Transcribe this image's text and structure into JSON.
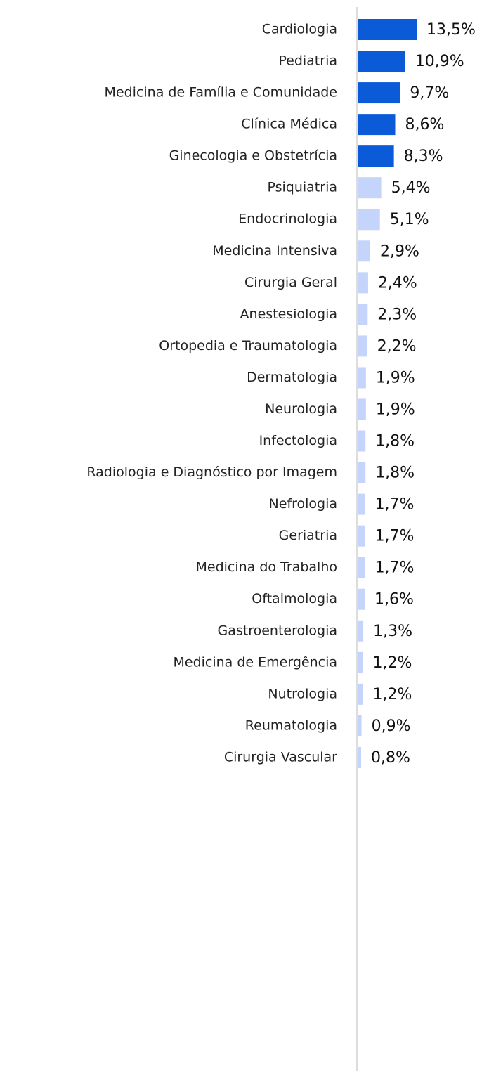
{
  "chart_data": {
    "type": "barh",
    "categories": [
      "Cardiologia",
      "Pediatria",
      "Medicina de Família e Comunidade",
      "Clínica Médica",
      "Ginecologia e Obstetrícia",
      "Psiquiatria",
      "Endocrinologia",
      "Medicina Intensiva",
      "Cirurgia Geral",
      "Anestesiologia",
      "Ortopedia e Traumatologia",
      "Dermatologia",
      "Neurologia",
      "Infectologia",
      "Radiologia e Diagnóstico por Imagem",
      "Nefrologia",
      "Geriatria",
      "Medicina do Trabalho",
      "Oftalmologia",
      "Gastroenterologia",
      "Medicina de Emergência",
      "Nutrologia",
      "Reumatologia",
      "Cirurgia Vascular"
    ],
    "values": [
      13.5,
      10.9,
      9.7,
      8.6,
      8.3,
      5.4,
      5.1,
      2.9,
      2.4,
      2.3,
      2.2,
      1.9,
      1.9,
      1.8,
      1.8,
      1.7,
      1.7,
      1.7,
      1.6,
      1.3,
      1.2,
      1.2,
      0.9,
      0.8
    ],
    "value_labels": [
      "13,5%",
      "10,9%",
      "9,7%",
      "8,6%",
      "8,3%",
      "5,4%",
      "5,1%",
      "2,9%",
      "2,4%",
      "2,3%",
      "2,2%",
      "1,9%",
      "1,9%",
      "1,8%",
      "1,8%",
      "1,7%",
      "1,7%",
      "1,7%",
      "1,6%",
      "1,3%",
      "1,2%",
      "1,2%",
      "0,9%",
      "0,8%"
    ],
    "colors": [
      "#0b5bd8",
      "#0b5bd8",
      "#0b5bd8",
      "#0b5bd8",
      "#0b5bd8",
      "#c4d4fa",
      "#c4d4fa",
      "#c4d4fa",
      "#c4d4fa",
      "#c4d4fa",
      "#c4d4fa",
      "#c4d4fa",
      "#c4d4fa",
      "#c4d4fa",
      "#c4d4fa",
      "#c4d4fa",
      "#c4d4fa",
      "#c4d4fa",
      "#c4d4fa",
      "#c4d4fa",
      "#c4d4fa",
      "#c4d4fa",
      "#c4d4fa",
      "#c4d4fa"
    ]
  }
}
